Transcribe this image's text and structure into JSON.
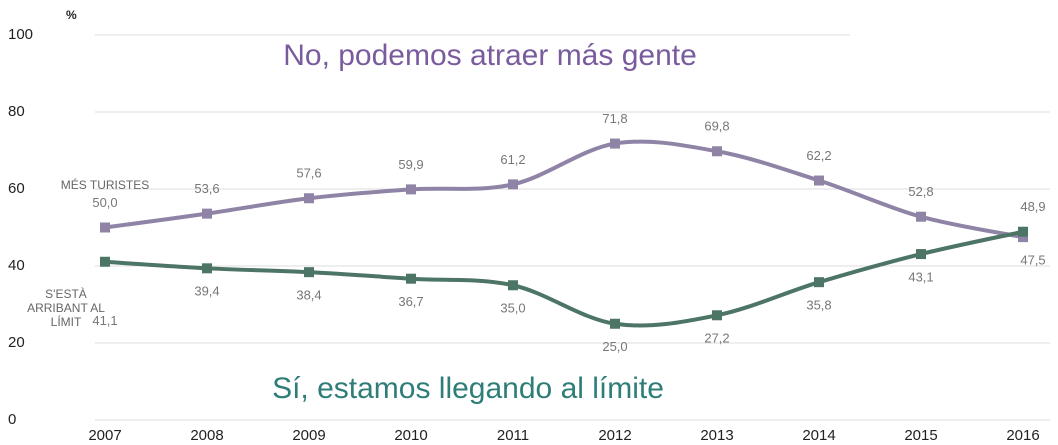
{
  "chart_data": {
    "type": "line",
    "y_label": "%",
    "annotations": [
      "No, podemos atraer más gente",
      "Sí, estamos llegando al límite"
    ],
    "categories": [
      "2007",
      "2008",
      "2009",
      "2010",
      "2011",
      "2012",
      "2013",
      "2014",
      "2015",
      "2016"
    ],
    "series": [
      {
        "name": "MÉS TURISTES",
        "color": "#8f84a6",
        "values": [
          50.0,
          53.6,
          57.6,
          59.9,
          61.2,
          71.8,
          69.8,
          62.2,
          52.8,
          47.5
        ],
        "value_labels": [
          "50,0",
          "53,6",
          "57,6",
          "59,9",
          "61,2",
          "71,8",
          "69,8",
          "62,2",
          "52,8",
          "47,5"
        ]
      },
      {
        "name": "S'ESTÀ ARRIBANT AL LÍMIT",
        "color": "#4d7566",
        "values": [
          41.1,
          39.4,
          38.4,
          36.7,
          35.0,
          25.0,
          27.2,
          35.8,
          43.1,
          48.9
        ],
        "value_labels": [
          "41,1",
          "39,4",
          "38,4",
          "36,7",
          "35,0",
          "25,0",
          "27,2",
          "35,8",
          "43,1",
          "48,9"
        ]
      }
    ],
    "ylim": [
      0,
      100
    ],
    "yticks": [
      0,
      20,
      40,
      60,
      80,
      100
    ],
    "grid": true
  }
}
